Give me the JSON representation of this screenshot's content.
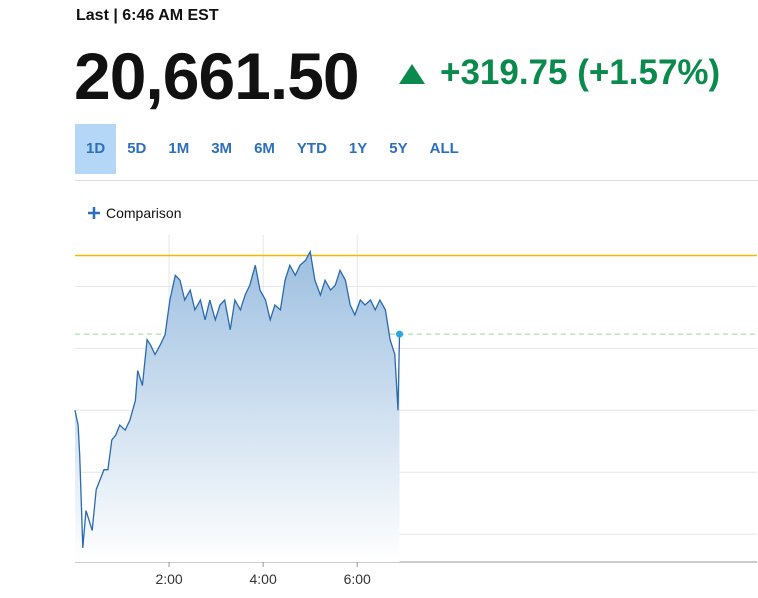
{
  "header": {
    "label": "Last | 6:46 AM EST",
    "price": "20,661.50",
    "change": "+319.75 (+1.57%)"
  },
  "ranges": [
    "1D",
    "5D",
    "1M",
    "3M",
    "6M",
    "YTD",
    "1Y",
    "5Y",
    "ALL"
  ],
  "comparison": "Comparison",
  "chart_data": {
    "type": "line",
    "x": [
      0,
      4,
      6,
      10,
      14,
      18,
      22,
      27,
      32,
      37,
      42,
      47,
      52,
      57,
      64,
      70,
      77,
      80,
      86,
      92,
      96,
      102,
      109,
      115,
      121,
      128,
      134,
      140,
      147,
      153,
      160,
      166,
      172,
      179,
      185,
      191,
      198,
      204,
      211,
      217,
      223,
      230,
      236,
      243,
      249,
      255,
      262,
      268,
      274,
      281,
      287,
      294,
      300,
      306,
      313,
      319,
      326,
      332,
      338,
      345,
      351,
      357,
      364,
      370,
      377,
      383,
      389,
      396,
      402,
      408,
      412,
      414
    ],
    "series": [
      {
        "color": "#2a6aad",
        "values": [
          20600,
          20588,
          20564,
          20489,
          20519,
          20511,
          20503,
          20536,
          20544,
          20552,
          20552,
          20576,
          20580,
          20588,
          20584,
          20592,
          20608,
          20632,
          20620,
          20657,
          20653,
          20645,
          20653,
          20661,
          20689,
          20709,
          20705,
          20689,
          20697,
          20681,
          20689,
          20673,
          20689,
          20673,
          20685,
          20689,
          20665,
          20689,
          20681,
          20693,
          20701,
          20717,
          20697,
          20689,
          20673,
          20685,
          20681,
          20705,
          20717,
          20709,
          20717,
          20721,
          20728,
          20705,
          20693,
          20705,
          20697,
          20701,
          20713,
          20705,
          20685,
          20677,
          20689,
          20685,
          20689,
          20681,
          20689,
          20681,
          20657,
          20645,
          20600,
          20661.5
        ]
      }
    ],
    "xlim": [
      0,
      870
    ],
    "xticks": [
      {
        "value": 120,
        "label": "2:00"
      },
      {
        "value": 240,
        "label": "4:00"
      },
      {
        "value": 360,
        "label": "6:00"
      }
    ],
    "ylim": [
      20477.5,
      20741.5
    ],
    "ygrid": [
      20700,
      20650,
      20600,
      20550,
      20500
    ],
    "high_line": 20725,
    "high_color": "#f5b800",
    "last_value": 20661.5,
    "last_color": "#9fd49f",
    "dot_color": "#29a8e0"
  }
}
